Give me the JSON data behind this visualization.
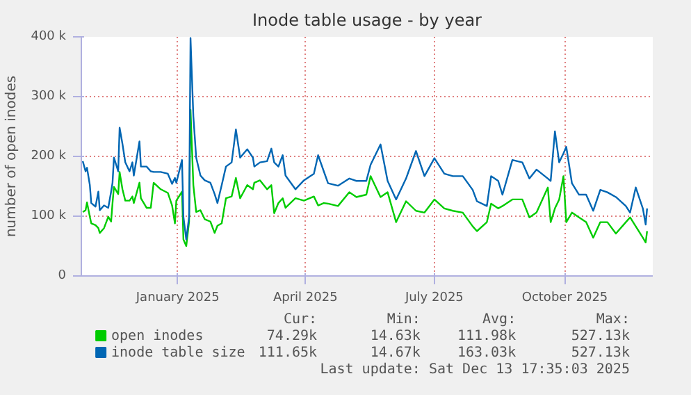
{
  "chart_data": {
    "type": "line",
    "title": "Inode table usage - by year",
    "ylabel": "number of open inodes",
    "x": [
      "2024-11-10",
      "2024-11-12",
      "2024-11-13",
      "2024-11-15",
      "2024-11-16",
      "2024-11-19",
      "2024-11-21",
      "2024-11-22",
      "2024-11-25",
      "2024-11-28",
      "2024-11-30",
      "2024-12-01",
      "2024-12-02",
      "2024-12-05",
      "2024-12-06",
      "2024-12-08",
      "2024-12-10",
      "2024-12-13",
      "2024-12-15",
      "2024-12-16",
      "2024-12-20",
      "2024-12-21",
      "2024-12-25",
      "2024-12-28",
      "2024-12-30",
      "2025-01-04",
      "2025-01-09",
      "2025-01-12",
      "2025-01-14",
      "2025-01-15",
      "2025-01-19",
      "2025-01-20",
      "2025-01-22",
      "2025-01-24",
      "2025-01-25",
      "2025-01-27",
      "2025-01-29",
      "2025-02-01",
      "2025-02-04",
      "2025-02-08",
      "2025-02-11",
      "2025-02-13",
      "2025-02-16",
      "2025-02-19",
      "2025-02-23",
      "2025-02-26",
      "2025-03-01",
      "2025-03-06",
      "2025-03-10",
      "2025-03-11",
      "2025-03-15",
      "2025-03-20",
      "2025-03-23",
      "2025-03-25",
      "2025-03-28",
      "2025-03-31",
      "2025-04-02",
      "2025-04-09",
      "2025-04-15",
      "2025-04-22",
      "2025-04-25",
      "2025-04-29",
      "2025-05-02",
      "2025-05-09",
      "2025-05-17",
      "2025-05-22",
      "2025-05-29",
      "2025-06-01",
      "2025-06-08",
      "2025-06-13",
      "2025-06-19",
      "2025-06-26",
      "2025-07-03",
      "2025-07-09",
      "2025-07-16",
      "2025-07-23",
      "2025-07-29",
      "2025-08-05",
      "2025-08-12",
      "2025-08-15",
      "2025-08-22",
      "2025-08-25",
      "2025-08-30",
      "2025-09-02",
      "2025-09-09",
      "2025-09-16",
      "2025-09-21",
      "2025-09-26",
      "2025-10-04",
      "2025-10-06",
      "2025-10-09",
      "2025-10-12",
      "2025-10-15",
      "2025-10-17",
      "2025-10-21",
      "2025-10-26",
      "2025-10-31",
      "2025-11-05",
      "2025-11-10",
      "2025-11-15",
      "2025-11-21",
      "2025-11-28",
      "2025-12-01",
      "2025-12-05",
      "2025-12-10",
      "2025-12-12",
      "2025-12-13"
    ],
    "series": [
      {
        "name": "open inodes",
        "color": "#00cc00",
        "values": [
          107000,
          110000,
          123000,
          99000,
          88000,
          85000,
          80000,
          72000,
          80000,
          99000,
          91000,
          122000,
          149000,
          137000,
          174000,
          145000,
          126000,
          126000,
          133000,
          122000,
          156000,
          130000,
          114000,
          114000,
          156000,
          145000,
          139000,
          118000,
          88000,
          126000,
          141000,
          61000,
          50000,
          91000,
          278000,
          152000,
          107000,
          110000,
          95000,
          91000,
          72000,
          84000,
          88000,
          130000,
          133000,
          164000,
          130000,
          152000,
          145000,
          156000,
          160000,
          145000,
          152000,
          105000,
          122000,
          130000,
          114000,
          130000,
          126000,
          133000,
          118000,
          122000,
          121000,
          117000,
          140000,
          132000,
          136000,
          167000,
          132000,
          140000,
          90000,
          125000,
          109000,
          106000,
          128000,
          113000,
          109000,
          106000,
          83000,
          75000,
          90000,
          121000,
          113000,
          117000,
          128000,
          128000,
          98000,
          106000,
          148000,
          90000,
          113000,
          128000,
          167000,
          90000,
          106000,
          98000,
          90000,
          64000,
          90000,
          90000,
          71000,
          90000,
          98000,
          83000,
          64000,
          56000,
          75000
        ]
      },
      {
        "name": "inode table size",
        "color": "#0066b3",
        "values": [
          192000,
          175000,
          181000,
          152000,
          122000,
          116000,
          141000,
          110000,
          118000,
          114000,
          141000,
          156000,
          198000,
          175000,
          248000,
          221000,
          190000,
          175000,
          190000,
          168000,
          225000,
          183000,
          183000,
          175000,
          174000,
          174000,
          171000,
          154000,
          164000,
          156000,
          194000,
          99000,
          61000,
          99000,
          398000,
          267000,
          198000,
          168000,
          160000,
          156000,
          137000,
          122000,
          152000,
          183000,
          190000,
          245000,
          198000,
          212000,
          198000,
          183000,
          190000,
          192000,
          213000,
          190000,
          183000,
          202000,
          168000,
          145000,
          160000,
          171000,
          202000,
          175000,
          155000,
          151000,
          163000,
          159000,
          159000,
          186000,
          220000,
          159000,
          128000,
          163000,
          209000,
          167000,
          197000,
          171000,
          167000,
          167000,
          144000,
          125000,
          117000,
          167000,
          159000,
          136000,
          194000,
          190000,
          163000,
          178000,
          163000,
          159000,
          242000,
          190000,
          205000,
          216000,
          155000,
          136000,
          136000,
          109000,
          144000,
          140000,
          132000,
          117000,
          106000,
          148000,
          113000,
          86000,
          113000
        ]
      }
    ],
    "xlim": [
      "2024-11-09",
      "2025-12-17"
    ],
    "xticks": [
      {
        "value": "2025-01-16",
        "label": "January 2025"
      },
      {
        "value": "2025-04-16",
        "label": "April 2025"
      },
      {
        "value": "2025-07-16",
        "label": "July 2025"
      },
      {
        "value": "2025-10-16",
        "label": "October 2025"
      }
    ],
    "ylim": [
      0,
      400000
    ],
    "yticks": [
      0,
      {
        "value": 100000,
        "label": "100 k"
      },
      {
        "value": 200000,
        "label": "200 k"
      },
      {
        "value": 300000,
        "label": "300 k"
      },
      {
        "value": 400000,
        "label": "400 k"
      }
    ],
    "grid": true,
    "legend": "bottom",
    "marker": "none",
    "line_style": "solid",
    "annotations": [
      "Cur:",
      "Min:",
      "Avg:",
      "Max:",
      "74.29k",
      "14.63k",
      "111.98k",
      "527.13k",
      "111.65k",
      "14.67k",
      "163.03k",
      "527.13k",
      "Last update: Sat Dec 13 17:35:03 2025"
    ]
  }
}
